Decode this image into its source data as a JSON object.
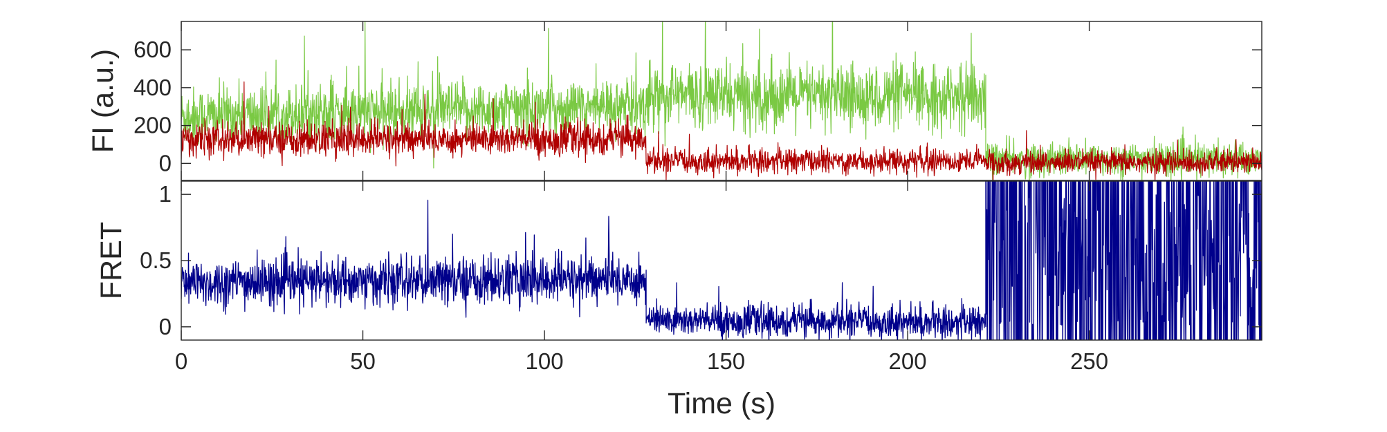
{
  "chart_data": [
    {
      "type": "line",
      "ylabel": "FI (a.u.)",
      "xlim": [
        0,
        297.5
      ],
      "ylim": [
        -90,
        750
      ],
      "yticks": [
        0,
        200,
        400,
        600
      ],
      "ytick_labels": [
        "0",
        "200",
        "400",
        "600"
      ],
      "series": [
        {
          "color": "#7ac943",
          "segments": [
            {
              "x_start": 0,
              "x_end": 128,
              "mean_start": 250,
              "mean_end": 300,
              "noise": 75
            },
            {
              "x_start": 128,
              "x_end": 221.5,
              "mean_start": 360,
              "mean_end": 350,
              "noise": 85
            },
            {
              "x_start": 221.5,
              "x_end": 297.5,
              "mean_start": 20,
              "mean_end": 20,
              "noise": 45
            }
          ]
        },
        {
          "color": "#b00000",
          "segments": [
            {
              "x_start": 0,
              "x_end": 128,
              "mean_start": 125,
              "mean_end": 130,
              "noise": 45
            },
            {
              "x_start": 128,
              "x_end": 221.5,
              "mean_start": 10,
              "mean_end": 15,
              "noise": 32
            },
            {
              "x_start": 221.5,
              "x_end": 297.5,
              "mean_start": 5,
              "mean_end": 5,
              "noise": 30
            }
          ]
        }
      ]
    },
    {
      "type": "line",
      "xlabel": "Time (s)",
      "ylabel": "FRET",
      "xlim": [
        0,
        297.5
      ],
      "ylim": [
        -0.1,
        1.1
      ],
      "xticks": [
        0,
        50,
        100,
        150,
        200,
        250
      ],
      "xtick_labels": [
        "0",
        "50",
        "100",
        "150",
        "200",
        "250"
      ],
      "yticks": [
        0,
        0.5,
        1
      ],
      "ytick_labels": [
        "0",
        "0.5",
        "1"
      ],
      "series": [
        {
          "color": "#00008b",
          "segments": [
            {
              "x_start": 0,
              "x_end": 128,
              "mean_start": 0.33,
              "mean_end": 0.36,
              "noise": 0.09
            },
            {
              "x_start": 128,
              "x_end": 221.5,
              "mean_start": 0.05,
              "mean_end": 0.03,
              "noise": 0.06
            },
            {
              "x_start": 221.5,
              "x_end": 297.5,
              "mean_start": 0.5,
              "mean_end": 0.5,
              "noise": 0.5
            }
          ]
        }
      ]
    }
  ]
}
